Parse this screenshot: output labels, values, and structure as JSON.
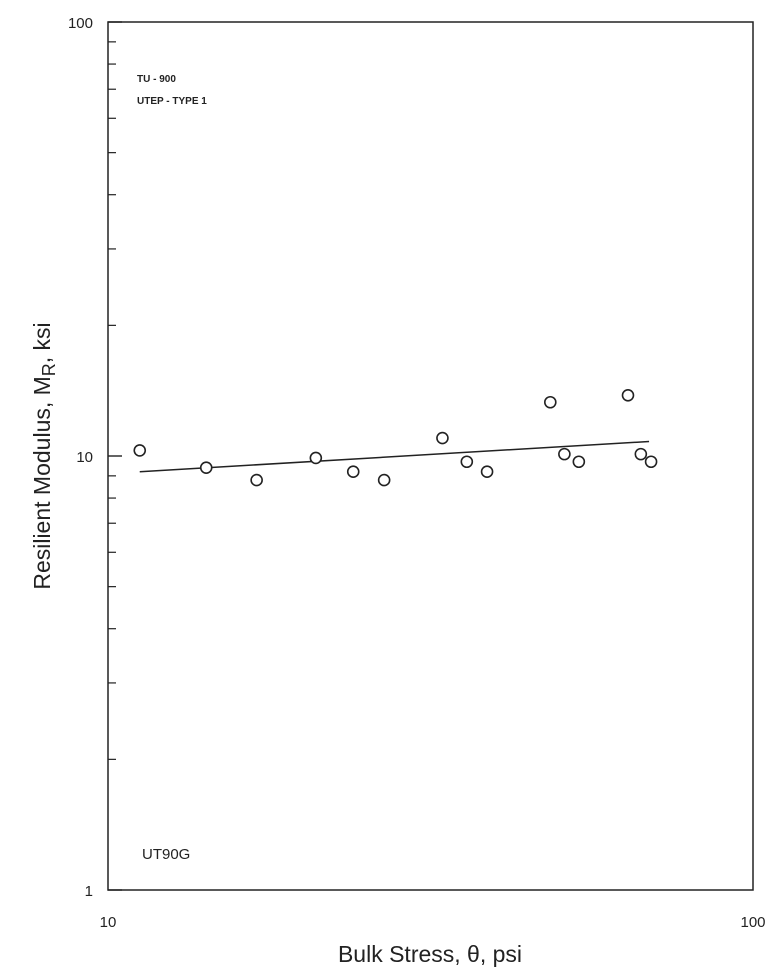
{
  "chart_data": {
    "type": "scatter",
    "title": "",
    "xlabel": "Bulk Stress, θ, psi",
    "ylabel_main": "Resilient Modulus, M",
    "ylabel_sub": "R",
    "ylabel_tail": ", ksi",
    "x_scale": "log",
    "y_scale": "log",
    "xlim": [
      10,
      100
    ],
    "ylim": [
      1,
      100
    ],
    "x_tick_labels": [
      "10",
      "100"
    ],
    "y_tick_labels": [
      "1",
      "10",
      "100"
    ],
    "grid": false,
    "annotations": {
      "line1": "TU - 900",
      "line2": "UTEP - TYPE 1",
      "sample_id": "UT90G"
    },
    "series": [
      {
        "marker": "open-circle",
        "points": [
          {
            "x": 11.2,
            "y": 10.3
          },
          {
            "x": 14.2,
            "y": 9.4
          },
          {
            "x": 17.0,
            "y": 8.8
          },
          {
            "x": 21.0,
            "y": 9.9
          },
          {
            "x": 24.0,
            "y": 9.2
          },
          {
            "x": 26.8,
            "y": 8.8
          },
          {
            "x": 33.0,
            "y": 11.0
          },
          {
            "x": 36.0,
            "y": 9.7
          },
          {
            "x": 38.7,
            "y": 9.2
          },
          {
            "x": 48.5,
            "y": 13.3
          },
          {
            "x": 51.0,
            "y": 10.1
          },
          {
            "x": 53.7,
            "y": 9.7
          },
          {
            "x": 64.0,
            "y": 13.8
          },
          {
            "x": 67.0,
            "y": 10.1
          },
          {
            "x": 69.5,
            "y": 9.7
          }
        ]
      }
    ],
    "fit_line": {
      "x": [
        11.2,
        69.0
      ],
      "y": [
        9.2,
        10.8
      ]
    }
  }
}
